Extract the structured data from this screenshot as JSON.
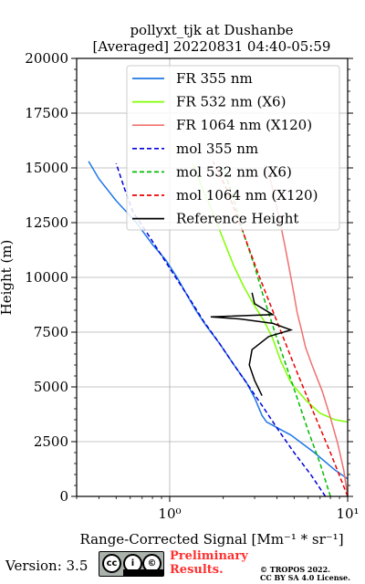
{
  "chart_data": {
    "type": "line",
    "title_line1": "pollyxt_tjk at Dushanbe",
    "title_line2": "[Averaged] 20220831 04:40-05:59",
    "xlabel": "Range-Corrected Signal [Mm⁻¹ * sr⁻¹]",
    "ylabel": "Height (m)",
    "xscale": "log",
    "xlim": [
      0.3,
      10
    ],
    "ylim": [
      0,
      20000
    ],
    "yticks": [
      0,
      2500,
      5000,
      7500,
      10000,
      12500,
      15000,
      17500,
      20000
    ],
    "ytick_labels": [
      "0",
      "2500",
      "5000",
      "7500",
      "10000",
      "12500",
      "15000",
      "17500",
      "20000"
    ],
    "xticks": [
      1,
      10
    ],
    "xtick_labels": [
      "10⁰",
      "10¹"
    ],
    "grid": true,
    "legend_position": "top-right",
    "series": [
      {
        "name": "FR 355 nm",
        "style": "solid",
        "color": "#1f77e6",
        "points": [
          [
            10,
            800
          ],
          [
            8.5,
            1200
          ],
          [
            6.5,
            2000
          ],
          [
            4.8,
            2800
          ],
          [
            3.5,
            3400
          ],
          [
            3.3,
            3700
          ],
          [
            3.0,
            4500
          ],
          [
            2.7,
            5200
          ],
          [
            2.3,
            6000
          ],
          [
            1.9,
            7000
          ],
          [
            1.6,
            7800
          ],
          [
            1.4,
            8500
          ],
          [
            1.25,
            9200
          ],
          [
            1.1,
            10000
          ],
          [
            0.95,
            10800
          ],
          [
            0.8,
            11500
          ],
          [
            0.65,
            12500
          ],
          [
            0.5,
            13500
          ],
          [
            0.4,
            14500
          ],
          [
            0.35,
            15300
          ]
        ]
      },
      {
        "name": "FR 532 nm (X6)",
        "style": "solid",
        "color": "#7fff00",
        "points": [
          [
            10,
            3400
          ],
          [
            8.5,
            3500
          ],
          [
            7.0,
            3800
          ],
          [
            5.8,
            4400
          ],
          [
            4.8,
            5200
          ],
          [
            4.2,
            6200
          ],
          [
            3.8,
            7200
          ],
          [
            3.4,
            8000
          ],
          [
            3.0,
            8700
          ],
          [
            2.6,
            9600
          ],
          [
            2.3,
            10500
          ],
          [
            2.1,
            11300
          ],
          [
            1.9,
            12200
          ],
          [
            1.7,
            13200
          ],
          [
            1.5,
            14200
          ],
          [
            1.35,
            15200
          ]
        ]
      },
      {
        "name": "FR 1064 nm (X120)",
        "style": "solid",
        "color": "#f07070",
        "points": [
          [
            10,
            0
          ],
          [
            9.5,
            1200
          ],
          [
            8.8,
            2400
          ],
          [
            8.0,
            3600
          ],
          [
            7.2,
            4800
          ],
          [
            6.3,
            6000
          ],
          [
            5.8,
            6800
          ],
          [
            5.5,
            7600
          ],
          [
            5.2,
            8400
          ],
          [
            5.0,
            9200
          ],
          [
            4.8,
            10000
          ],
          [
            4.6,
            10800
          ],
          [
            4.4,
            11600
          ],
          [
            4.2,
            12400
          ],
          [
            4.0,
            13200
          ],
          [
            3.8,
            14000
          ],
          [
            3.6,
            14800
          ]
        ]
      },
      {
        "name": "mol 355 nm",
        "style": "dashed",
        "color": "#0000dd",
        "points": [
          [
            7.5,
            0
          ],
          [
            6.2,
            1000
          ],
          [
            5.0,
            2000
          ],
          [
            4.1,
            3000
          ],
          [
            3.4,
            4000
          ],
          [
            2.8,
            5000
          ],
          [
            2.3,
            6000
          ],
          [
            1.9,
            7000
          ],
          [
            1.55,
            8000
          ],
          [
            1.3,
            9000
          ],
          [
            1.08,
            10000
          ],
          [
            0.9,
            11000
          ],
          [
            0.75,
            12000
          ],
          [
            0.62,
            13000
          ],
          [
            0.56,
            14000
          ],
          [
            0.5,
            15200
          ]
        ]
      },
      {
        "name": "mol 532 nm (X6)",
        "style": "dashed",
        "color": "#00bb00",
        "points": [
          [
            8.0,
            0
          ],
          [
            7.0,
            1500
          ],
          [
            6.0,
            3000
          ],
          [
            5.2,
            4500
          ],
          [
            4.5,
            6000
          ],
          [
            3.9,
            7500
          ],
          [
            3.4,
            9000
          ],
          [
            3.0,
            10500
          ],
          [
            2.6,
            12000
          ],
          [
            2.3,
            13500
          ],
          [
            2.0,
            15000
          ]
        ]
      },
      {
        "name": "mol 1064 nm (X120)",
        "style": "dashed",
        "color": "#ee0000",
        "points": [
          [
            10,
            0
          ],
          [
            8.0,
            2000
          ],
          [
            6.3,
            4000
          ],
          [
            5.0,
            6000
          ],
          [
            4.0,
            8000
          ],
          [
            3.2,
            10000
          ],
          [
            2.6,
            12000
          ],
          [
            2.1,
            14000
          ],
          [
            1.75,
            15300
          ]
        ]
      },
      {
        "name": "Reference Height",
        "style": "solid",
        "color": "#000000",
        "points": [
          [
            3.3,
            4600
          ],
          [
            3.0,
            5300
          ],
          [
            2.8,
            6000
          ],
          [
            2.9,
            6700
          ],
          [
            3.6,
            7300
          ],
          [
            4.8,
            7600
          ],
          [
            3.8,
            7900
          ],
          [
            2.5,
            8100
          ],
          [
            1.7,
            8200
          ],
          [
            3.8,
            8300
          ],
          [
            3.0,
            8800
          ],
          [
            2.9,
            9300
          ]
        ]
      }
    ]
  },
  "footer": {
    "version": "Version: 3.5",
    "cc_label": "BY SA",
    "preliminary_line1": "Preliminary",
    "preliminary_line2": "Results.",
    "copyright_line1": "© TROPOS 2022.",
    "copyright_line2": "CC BY SA 4.0 License."
  }
}
